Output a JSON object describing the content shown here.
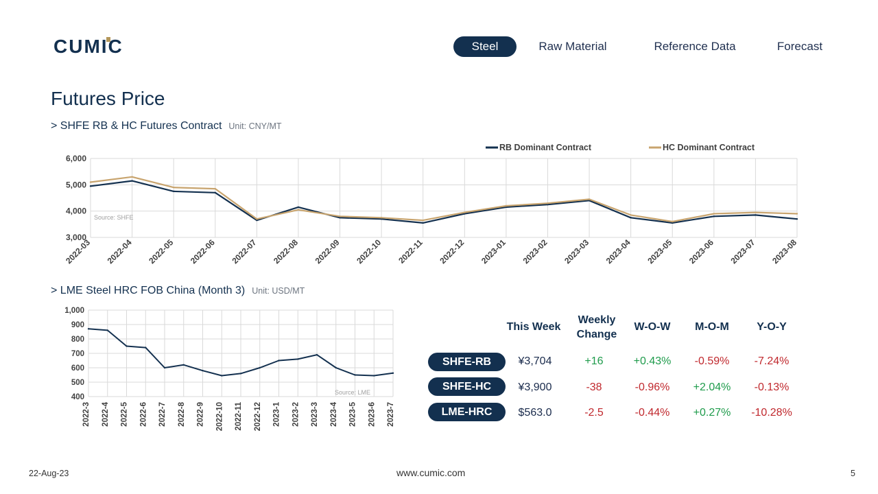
{
  "brand": {
    "name": "CUMIC",
    "gold": "#b4975a",
    "navy": "#13304f"
  },
  "nav": {
    "items": [
      {
        "label": "Steel",
        "active": true
      },
      {
        "label": "Raw Material",
        "active": false
      },
      {
        "label": "Reference Data",
        "active": false
      },
      {
        "label": "Forecast",
        "active": false
      }
    ]
  },
  "page_title": "Futures Price",
  "section1": {
    "title": "> SHFE RB & HC Futures Contract",
    "unit": "Unit: CNY/MT"
  },
  "section2": {
    "title": "> LME Steel HRC FOB China (Month 3)",
    "unit": "Unit: USD/MT"
  },
  "chart_data": [
    {
      "type": "line",
      "title": "",
      "xlabel": "",
      "ylabel": "",
      "ylim": [
        3000,
        6000
      ],
      "yticks": [
        "3,000",
        "4,000",
        "5,000",
        "6,000"
      ],
      "categories": [
        "2022-03",
        "2022-04",
        "2022-05",
        "2022-06",
        "2022-07",
        "2022-08",
        "2022-09",
        "2022-10",
        "2022-11",
        "2022-12",
        "2023-01",
        "2023-02",
        "2023-03",
        "2023-04",
        "2023-05",
        "2023-06",
        "2023-07",
        "2023-08"
      ],
      "legend_position": "top-right",
      "source_note": "Source:  SHFE",
      "series": [
        {
          "name": "RB Dominant Contract",
          "color": "#13304f",
          "values": [
            4950,
            5150,
            4750,
            4700,
            3650,
            4150,
            3750,
            3700,
            3550,
            3900,
            4150,
            4250,
            4400,
            3750,
            3550,
            3800,
            3850,
            3700
          ]
        },
        {
          "name": "HC Dominant Contract",
          "color": "#c8a46e",
          "values": [
            5100,
            5300,
            4900,
            4850,
            3700,
            4050,
            3800,
            3750,
            3650,
            3950,
            4200,
            4300,
            4450,
            3850,
            3600,
            3900,
            3950,
            3900
          ]
        }
      ]
    },
    {
      "type": "line",
      "title": "",
      "xlabel": "",
      "ylabel": "",
      "ylim": [
        400,
        1000
      ],
      "yticks": [
        "400",
        "500",
        "600",
        "700",
        "800",
        "900",
        "1,000"
      ],
      "categories": [
        "2022-3",
        "2022-4",
        "2022-5",
        "2022-6",
        "2022-7",
        "2022-8",
        "2022-9",
        "2022-10",
        "2022-11",
        "2022-12",
        "2023-1",
        "2023-2",
        "2023-3",
        "2023-4",
        "2023-5",
        "2023-6",
        "2023-7"
      ],
      "source_note": "Source:  LME",
      "series": [
        {
          "name": "",
          "color": "#13304f",
          "values": [
            870,
            860,
            750,
            740,
            600,
            620,
            580,
            545,
            560,
            600,
            650,
            660,
            690,
            600,
            550,
            545,
            563
          ]
        }
      ]
    }
  ],
  "table": {
    "headers": [
      "This Week",
      "Weekly Change",
      "W-O-W",
      "M-O-M",
      "Y-O-Y"
    ],
    "rows": [
      {
        "label": "SHFE-RB",
        "this_week": "¥3,704",
        "weekly_change": "+16",
        "wow": "+0.43%",
        "mom": "-0.59%",
        "yoy": "-7.24%"
      },
      {
        "label": "SHFE-HC",
        "this_week": "¥3,900",
        "weekly_change": "-38",
        "wow": "-0.96%",
        "mom": "+2.04%",
        "yoy": "-0.13%"
      },
      {
        "label": "LME-HRC",
        "this_week": "$563.0",
        "weekly_change": "-2.5",
        "wow": "-0.44%",
        "mom": "+0.27%",
        "yoy": "-10.28%"
      }
    ]
  },
  "footer": {
    "date": "22-Aug-23",
    "site": "www.cumic.com",
    "page": "5"
  }
}
